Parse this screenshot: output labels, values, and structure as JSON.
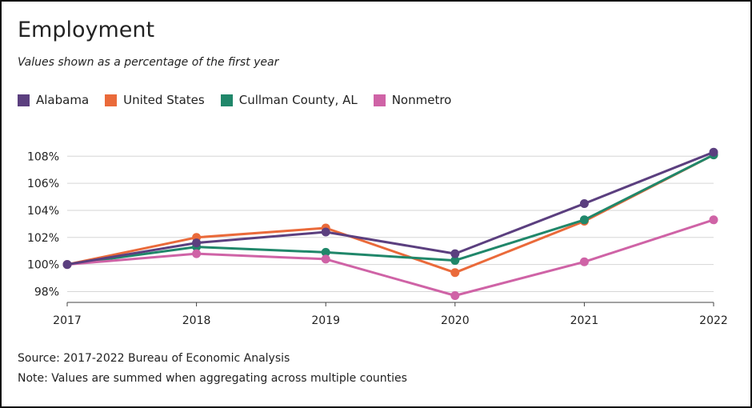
{
  "header": {
    "title": "Employment",
    "subtitle": "Values shown as a percentage of the first year"
  },
  "legend": {
    "items": [
      {
        "label": "Alabama",
        "color": "#5b3f7f"
      },
      {
        "label": "United States",
        "color": "#ea6a3a"
      },
      {
        "label": "Cullman County, AL",
        "color": "#20876a"
      },
      {
        "label": "Nonmetro",
        "color": "#cf63a6"
      }
    ]
  },
  "footer": {
    "source": "Source: 2017-2022 Bureau of Economic Analysis",
    "note": "Note: Values are summed when aggregating across multiple counties"
  },
  "chart_data": {
    "type": "line",
    "title": "Employment",
    "subtitle": "Values shown as a percentage of the first year",
    "x": [
      "2017",
      "2018",
      "2019",
      "2020",
      "2021",
      "2022"
    ],
    "xlabel": "",
    "ylabel": "",
    "ylim": [
      97.2,
      109.2
    ],
    "yticks": [
      98,
      100,
      102,
      104,
      106,
      108
    ],
    "ytick_labels": [
      "98%",
      "100%",
      "102%",
      "104%",
      "106%",
      "108%"
    ],
    "grid": "horizontal",
    "legend_position": "top-left",
    "series": [
      {
        "name": "United States",
        "color": "#ea6a3a",
        "values": [
          100,
          102.0,
          102.7,
          99.4,
          103.2,
          108.1
        ]
      },
      {
        "name": "Cullman County, AL",
        "color": "#20876a",
        "values": [
          100,
          101.3,
          100.9,
          100.3,
          103.3,
          108.1
        ]
      },
      {
        "name": "Nonmetro",
        "color": "#cf63a6",
        "values": [
          100,
          100.8,
          100.4,
          97.7,
          100.2,
          103.3
        ]
      },
      {
        "name": "Alabama",
        "color": "#5b3f7f",
        "values": [
          100,
          101.6,
          102.4,
          100.8,
          104.5,
          108.3
        ]
      }
    ]
  }
}
